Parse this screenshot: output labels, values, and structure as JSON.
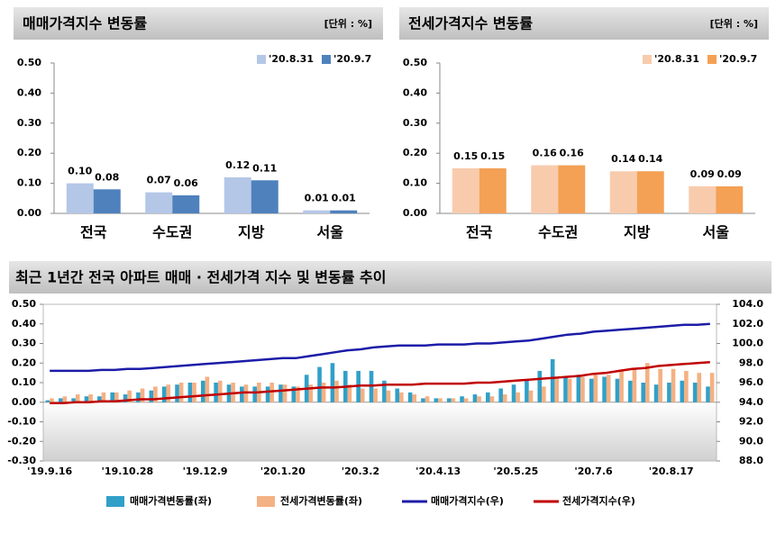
{
  "chart_data": [
    {
      "type": "bar",
      "title": "매매가격지수 변동률",
      "unit": "[단위 : %]",
      "categories": [
        "전국",
        "수도권",
        "지방",
        "서울"
      ],
      "series": [
        {
          "name": "'20.8.31",
          "color": "#b4c7e7",
          "values": [
            0.1,
            0.07,
            0.12,
            0.01
          ],
          "value_labels": [
            "0.10",
            "0.07",
            "0.12",
            "0.01"
          ]
        },
        {
          "name": "'20.9.7",
          "color": "#4f81bd",
          "values": [
            0.08,
            0.06,
            0.11,
            0.01
          ],
          "value_labels": [
            "0.08",
            "0.06",
            "0.11",
            "0.01"
          ]
        }
      ],
      "ylim": [
        0,
        0.5
      ],
      "yticks": [
        {
          "value": 0,
          "label": "0.00"
        },
        {
          "value": 0.1,
          "label": "0.10"
        },
        {
          "value": 0.2,
          "label": "0.20"
        },
        {
          "value": 0.3,
          "label": "0.30"
        },
        {
          "value": 0.4,
          "label": "0.40"
        },
        {
          "value": 0.5,
          "label": "0.50"
        }
      ],
      "legend": "upper right"
    },
    {
      "type": "bar",
      "title": "전세가격지수 변동률",
      "unit": "[단위 : %]",
      "categories": [
        "전국",
        "수도권",
        "지방",
        "서울"
      ],
      "series": [
        {
          "name": "'20.8.31",
          "color": "#f8cbad",
          "values": [
            0.15,
            0.16,
            0.14,
            0.09
          ],
          "value_labels": [
            "0.15",
            "0.16",
            "0.14",
            "0.09"
          ]
        },
        {
          "name": "'20.9.7",
          "color": "#f4a055",
          "values": [
            0.15,
            0.16,
            0.14,
            0.09
          ],
          "value_labels": [
            "0.15",
            "0.16",
            "0.14",
            "0.09"
          ]
        }
      ],
      "ylim": [
        0,
        0.5
      ],
      "yticks": [
        {
          "value": 0,
          "label": "0.00"
        },
        {
          "value": 0.1,
          "label": "0.10"
        },
        {
          "value": 0.2,
          "label": "0.20"
        },
        {
          "value": 0.3,
          "label": "0.30"
        },
        {
          "value": 0.4,
          "label": "0.40"
        },
        {
          "value": 0.5,
          "label": "0.50"
        }
      ],
      "legend": "upper right"
    },
    {
      "type": "combo",
      "title": "최근 1년간 전국 아파트 매매 · 전세가격 지수 및 변동률 추이",
      "categories": [
        "'19.9.16",
        null,
        null,
        null,
        null,
        null,
        "'19.10.28",
        null,
        null,
        null,
        null,
        null,
        "'19.12.9",
        null,
        null,
        null,
        null,
        null,
        "'20.1.20",
        null,
        null,
        null,
        null,
        null,
        "'20.3.2",
        null,
        null,
        null,
        null,
        null,
        "'20.4.13",
        null,
        null,
        null,
        null,
        null,
        "'20.5.25",
        null,
        null,
        null,
        null,
        null,
        "'20.7.6",
        null,
        null,
        null,
        null,
        null,
        "'20.8.17",
        null,
        null,
        null
      ],
      "series": [
        {
          "name": "매매가격변동률(좌)",
          "kind": "bar",
          "color": "#31a0c8",
          "values": [
            0.01,
            0.02,
            0.02,
            0.03,
            0.03,
            0.05,
            0.04,
            0.05,
            0.06,
            0.08,
            0.09,
            0.1,
            0.11,
            0.1,
            0.09,
            0.08,
            0.08,
            0.08,
            0.09,
            0.08,
            0.14,
            0.18,
            0.2,
            0.16,
            0.16,
            0.16,
            0.11,
            0.07,
            0.05,
            0.02,
            0.02,
            0.02,
            0.03,
            0.04,
            0.05,
            0.07,
            0.09,
            0.11,
            0.16,
            0.22,
            0.13,
            0.14,
            0.12,
            0.13,
            0.12,
            0.11,
            0.1,
            0.09,
            0.1,
            0.11,
            0.1,
            0.08
          ]
        },
        {
          "name": "전세가격변동률(좌)",
          "kind": "bar",
          "color": "#f4b183",
          "values": [
            0.02,
            0.03,
            0.04,
            0.04,
            0.05,
            0.05,
            0.06,
            0.07,
            0.08,
            0.09,
            0.1,
            0.1,
            0.13,
            0.11,
            0.1,
            0.09,
            0.1,
            0.1,
            0.09,
            0.08,
            0.09,
            0.1,
            0.11,
            0.09,
            0.07,
            0.07,
            0.06,
            0.05,
            0.04,
            0.03,
            0.02,
            0.02,
            0.02,
            0.03,
            0.03,
            0.04,
            0.05,
            0.06,
            0.08,
            0.12,
            0.12,
            0.13,
            0.14,
            0.14,
            0.16,
            0.17,
            0.2,
            0.17,
            0.17,
            0.16,
            0.15,
            0.15
          ]
        },
        {
          "name": "매매가격지수(우)",
          "kind": "line",
          "axis": "y2",
          "color": "#1c1ca8",
          "values": [
            97.2,
            97.2,
            97.2,
            97.2,
            97.3,
            97.3,
            97.4,
            97.4,
            97.5,
            97.6,
            97.7,
            97.8,
            97.9,
            98.0,
            98.1,
            98.2,
            98.3,
            98.4,
            98.5,
            98.5,
            98.7,
            98.9,
            99.1,
            99.3,
            99.4,
            99.6,
            99.7,
            99.8,
            99.8,
            99.8,
            99.9,
            99.9,
            99.9,
            100.0,
            100.0,
            100.1,
            100.2,
            100.3,
            100.5,
            100.7,
            100.9,
            101.0,
            101.2,
            101.3,
            101.4,
            101.5,
            101.6,
            101.7,
            101.8,
            101.9,
            101.9,
            102.0
          ]
        },
        {
          "name": "전세가격지수(우)",
          "kind": "line",
          "axis": "y2",
          "color": "#c00000",
          "values": [
            93.9,
            93.9,
            94.0,
            94.0,
            94.1,
            94.1,
            94.2,
            94.3,
            94.3,
            94.4,
            94.5,
            94.6,
            94.7,
            94.8,
            94.9,
            95.0,
            95.0,
            95.1,
            95.2,
            95.3,
            95.4,
            95.5,
            95.5,
            95.6,
            95.7,
            95.7,
            95.8,
            95.8,
            95.8,
            95.9,
            95.9,
            95.9,
            95.9,
            96.0,
            96.0,
            96.1,
            96.2,
            96.3,
            96.4,
            96.5,
            96.6,
            96.7,
            96.9,
            97.0,
            97.2,
            97.4,
            97.5,
            97.7,
            97.8,
            97.9,
            98.0,
            98.1
          ]
        }
      ],
      "ylim": [
        -0.3,
        0.5
      ],
      "yticks": [
        {
          "value": -0.3,
          "label": "-0.30"
        },
        {
          "value": -0.2,
          "label": "-0.20"
        },
        {
          "value": -0.1,
          "label": "-0.10"
        },
        {
          "value": 0,
          "label": "0.00"
        },
        {
          "value": 0.1,
          "label": "0.10"
        },
        {
          "value": 0.2,
          "label": "0.20"
        },
        {
          "value": 0.3,
          "label": "0.30"
        },
        {
          "value": 0.4,
          "label": "0.40"
        },
        {
          "value": 0.5,
          "label": "0.50"
        }
      ],
      "y2lim": [
        88,
        104
      ],
      "y2ticks": [
        {
          "value": 88,
          "label": "88.0"
        },
        {
          "value": 90,
          "label": "90.0"
        },
        {
          "value": 92,
          "label": "92.0"
        },
        {
          "value": 94,
          "label": "94.0"
        },
        {
          "value": 96,
          "label": "96.0"
        },
        {
          "value": 98,
          "label": "98.0"
        },
        {
          "value": 100,
          "label": "100.0"
        },
        {
          "value": 102,
          "label": "102.0"
        },
        {
          "value": 104,
          "label": "104.0"
        }
      ],
      "legend": "bottom"
    }
  ]
}
